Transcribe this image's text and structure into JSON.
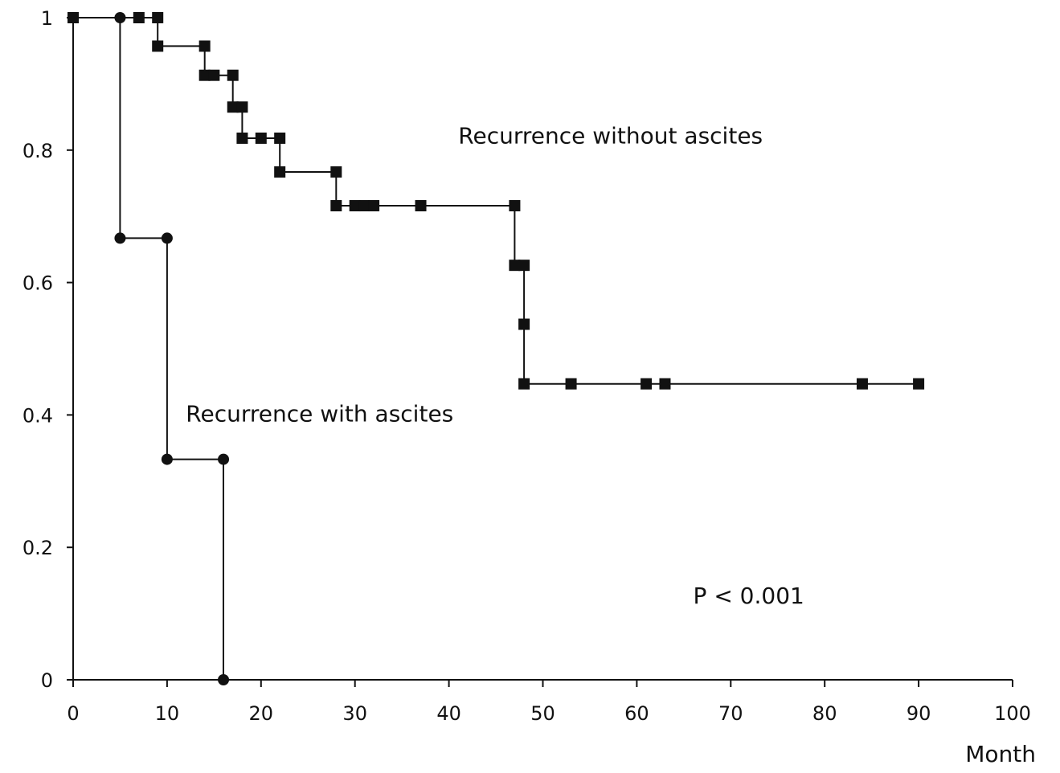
{
  "chart_data": {
    "type": "line",
    "title": "",
    "xlabel": "Month",
    "ylabel": "",
    "xlim": [
      0,
      100
    ],
    "ylim": [
      0,
      1
    ],
    "xticks": [
      0,
      10,
      20,
      30,
      40,
      50,
      60,
      70,
      80,
      90,
      100
    ],
    "xtick_labels": [
      "0",
      "10",
      "20",
      "30",
      "40",
      "50",
      "60",
      "70",
      "80",
      "90",
      "100"
    ],
    "yticks": [
      0,
      0.2,
      0.4,
      0.6,
      0.8,
      1
    ],
    "ytick_labels": [
      "0",
      "0.2",
      "0.4",
      "0.6",
      "0.8",
      "1"
    ],
    "grid": false,
    "step_plot": true,
    "series": [
      {
        "name": "Recurrence without ascites",
        "marker": "square",
        "color": "#111111",
        "points": [
          {
            "x": 0,
            "y": 1.0
          },
          {
            "x": 7,
            "y": 1.0
          },
          {
            "x": 9,
            "y": 1.0
          },
          {
            "x": 9,
            "y": 0.957
          },
          {
            "x": 14,
            "y": 0.957
          },
          {
            "x": 14,
            "y": 0.913
          },
          {
            "x": 15,
            "y": 0.913
          },
          {
            "x": 17,
            "y": 0.913
          },
          {
            "x": 17,
            "y": 0.865
          },
          {
            "x": 18,
            "y": 0.865
          },
          {
            "x": 18,
            "y": 0.818
          },
          {
            "x": 20,
            "y": 0.818
          },
          {
            "x": 22,
            "y": 0.818
          },
          {
            "x": 22,
            "y": 0.767
          },
          {
            "x": 28,
            "y": 0.767
          },
          {
            "x": 28,
            "y": 0.716
          },
          {
            "x": 30,
            "y": 0.716
          },
          {
            "x": 31,
            "y": 0.716
          },
          {
            "x": 32,
            "y": 0.716
          },
          {
            "x": 37,
            "y": 0.716
          },
          {
            "x": 47,
            "y": 0.716
          },
          {
            "x": 47,
            "y": 0.626
          },
          {
            "x": 48,
            "y": 0.626
          },
          {
            "x": 48,
            "y": 0.537
          },
          {
            "x": 48,
            "y": 0.447
          },
          {
            "x": 53,
            "y": 0.447
          },
          {
            "x": 61,
            "y": 0.447
          },
          {
            "x": 63,
            "y": 0.447
          },
          {
            "x": 84,
            "y": 0.447
          },
          {
            "x": 90,
            "y": 0.447
          }
        ]
      },
      {
        "name": "Recurrence with ascites",
        "marker": "circle",
        "color": "#111111",
        "points": [
          {
            "x": 0,
            "y": 1.0
          },
          {
            "x": 5,
            "y": 1.0
          },
          {
            "x": 5,
            "y": 0.667
          },
          {
            "x": 10,
            "y": 0.667
          },
          {
            "x": 10,
            "y": 0.333
          },
          {
            "x": 16,
            "y": 0.333
          },
          {
            "x": 16,
            "y": 0.0
          }
        ]
      }
    ],
    "annotations": [
      {
        "text": "Recurrence without ascites",
        "x": 41,
        "y": 0.81
      },
      {
        "text": "Recurrence with ascites",
        "x": 12,
        "y": 0.39
      },
      {
        "text": "P < 0.001",
        "x": 66,
        "y": 0.115
      }
    ]
  }
}
